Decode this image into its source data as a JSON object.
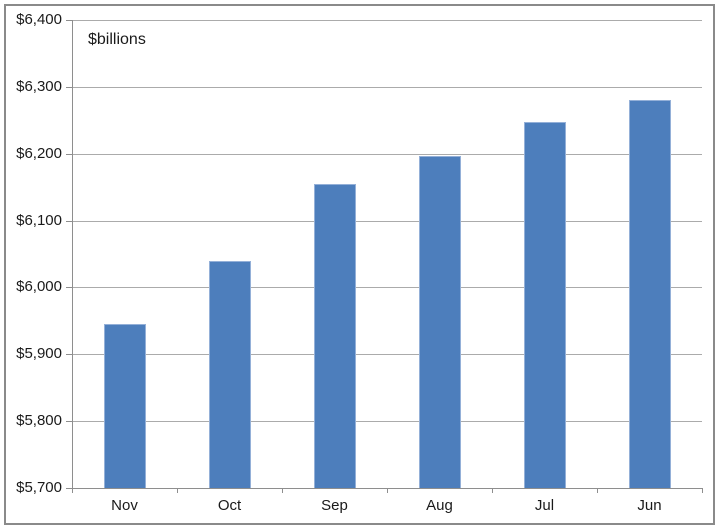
{
  "chart_data": {
    "type": "bar",
    "title": "",
    "inner_label": "$billions",
    "categories": [
      "Nov",
      "Oct",
      "Sep",
      "Aug",
      "Jul",
      "Jun"
    ],
    "values": [
      5945,
      6040,
      6155,
      6197,
      6247,
      6280
    ],
    "series_name": "",
    "xlabel": "",
    "ylabel": "",
    "ylim": [
      5700,
      6400
    ],
    "ytick_step": 100,
    "ytick_labels": [
      "$5,700",
      "$5,800",
      "$5,900",
      "$6,000",
      "$6,100",
      "$6,200",
      "$6,300",
      "$6,400"
    ],
    "grid": true,
    "legend": "none",
    "colors": {
      "bar_fill": "#4D7EBC",
      "bar_border": "#94B0D8",
      "gridline": "#ABABAB",
      "axis": "#8E8E8E",
      "frame_border": "#8A8A8A",
      "text": "#1A1A1A",
      "background": "#FFFFFF"
    }
  }
}
